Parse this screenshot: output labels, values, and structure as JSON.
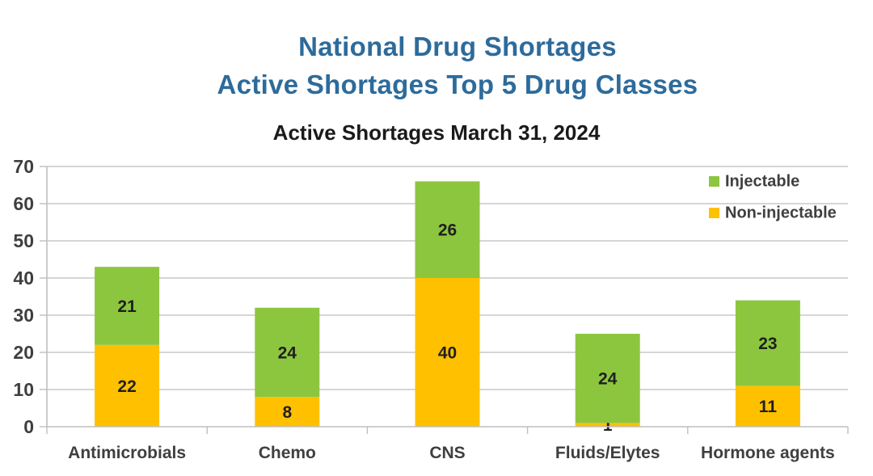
{
  "header": {
    "line1": "National Drug Shortages",
    "line2": "Active Shortages Top 5 Drug Classes",
    "color": "#2d6b9b"
  },
  "chart_data": {
    "type": "bar",
    "stacked": true,
    "title": "Active Shortages March 31, 2024",
    "categories": [
      "Antimicrobials",
      "Chemo",
      "CNS",
      "Fluids/Elytes",
      "Hormone agents"
    ],
    "series": [
      {
        "name": "Non-injectable",
        "color": "#FFC000",
        "values": [
          22,
          8,
          40,
          1,
          11
        ]
      },
      {
        "name": "Injectable",
        "color": "#8CC63F",
        "values": [
          21,
          24,
          26,
          24,
          23
        ]
      }
    ],
    "xlabel": "",
    "ylabel": "",
    "ylim": [
      0,
      70
    ],
    "ytick_step": 10,
    "yticks": [
      0,
      10,
      20,
      30,
      40,
      50,
      60,
      70
    ],
    "grid": true,
    "data_labels": true,
    "legend_position": "top-right",
    "legend_order": [
      "Injectable",
      "Non-injectable"
    ],
    "colors": {
      "grid": "#c8c8c8",
      "axis": "#bfbfbf",
      "tick_text": "#3f3f3f",
      "data_label": "#1f1f1f",
      "chart_title": "#1a1a1a"
    }
  }
}
